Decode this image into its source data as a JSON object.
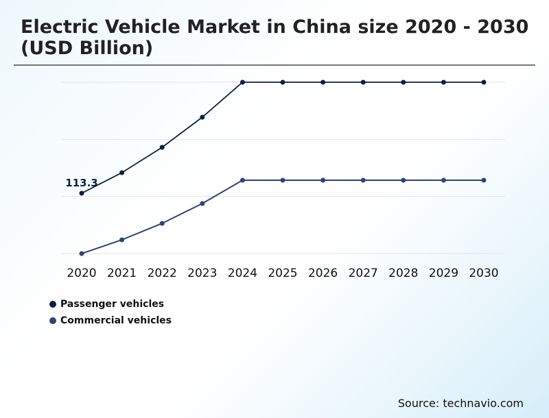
{
  "chart_data": {
    "type": "line",
    "title": "Electric Vehicle Market in China size 2020 - 2030 (USD Billion)",
    "xlabel": "",
    "ylabel": "",
    "categories": [
      "2020",
      "2021",
      "2022",
      "2023",
      "2024",
      "2025",
      "2026",
      "2027",
      "2028",
      "2029",
      "2030"
    ],
    "series": [
      {
        "name": "Passenger vehicles",
        "color": "#0d1f45",
        "values": [
          113.3,
          151.9,
          199.6,
          256.2,
          321.9,
          321.9,
          321.9,
          321.9,
          321.9,
          321.9,
          321.9
        ]
      },
      {
        "name": "Commercial vehicles",
        "color": "#2e4476",
        "values": [
          0,
          25.8,
          56.7,
          94.0,
          137.8,
          137.8,
          137.8,
          137.8,
          137.8,
          137.8,
          137.8
        ]
      }
    ],
    "data_labels": [
      {
        "series": 0,
        "index": 0,
        "text": "113.3"
      }
    ],
    "ylim": [
      0,
      321.9
    ],
    "grid": true,
    "legend": "bottom-left"
  },
  "source": "Source: technavio.com"
}
